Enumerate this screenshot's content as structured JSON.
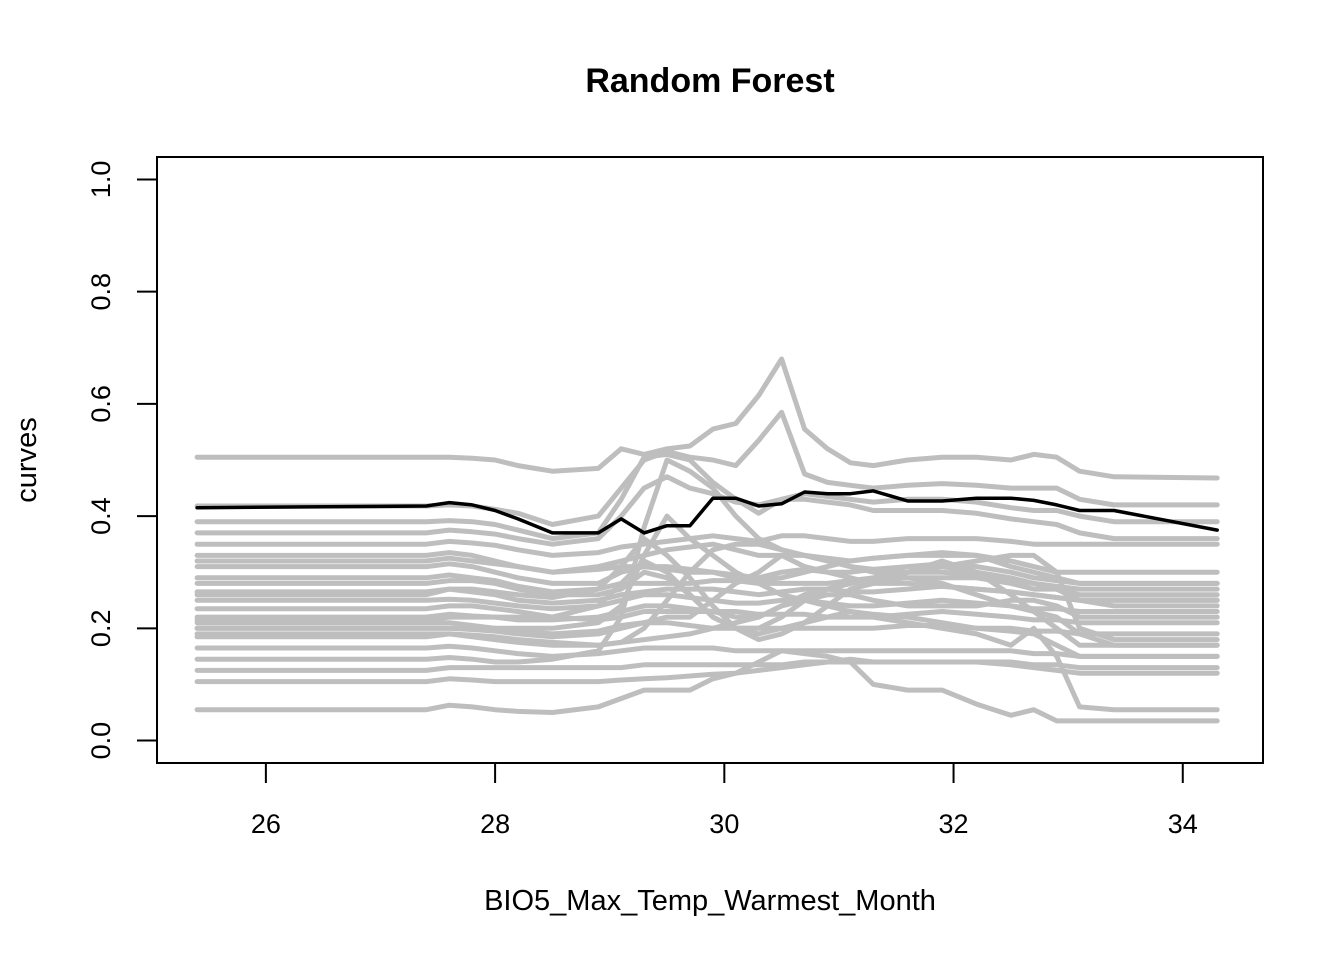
{
  "chart_data": {
    "type": "line",
    "title": "Random Forest",
    "xlabel": "BIO5_Max_Temp_Warmest_Month",
    "ylabel": "curves",
    "xlim": [
      25.05,
      34.7
    ],
    "ylim": [
      -0.04,
      1.04
    ],
    "xticks": [
      26,
      28,
      30,
      32,
      34
    ],
    "yticks": [
      0.0,
      0.2,
      0.4,
      0.6,
      0.8,
      1.0
    ],
    "xtick_labels": [
      "26",
      "28",
      "30",
      "32",
      "34"
    ],
    "ytick_labels": [
      "0.0",
      "0.2",
      "0.4",
      "0.6",
      "0.8",
      "1.0"
    ],
    "grid": false,
    "legend": "none",
    "colors": {
      "individual": "#bebebe",
      "mean": "#000000"
    },
    "x": [
      25.4,
      27.4,
      27.6,
      27.8,
      28.0,
      28.2,
      28.5,
      28.9,
      29.1,
      29.3,
      29.5,
      29.7,
      29.9,
      30.1,
      30.3,
      30.5,
      30.7,
      30.9,
      31.1,
      31.3,
      31.6,
      31.9,
      32.2,
      32.5,
      32.7,
      32.9,
      33.1,
      33.4,
      34.3
    ],
    "series": [
      {
        "values": [
          0.505,
          0.505,
          0.505,
          0.503,
          0.5,
          0.49,
          0.48,
          0.485,
          0.52,
          0.51,
          0.52,
          0.525,
          0.555,
          0.565,
          0.615,
          0.68,
          0.555,
          0.52,
          0.495,
          0.49,
          0.5,
          0.505,
          0.505,
          0.5,
          0.51,
          0.505,
          0.48,
          0.47,
          0.468
        ]
      },
      {
        "values": [
          0.418,
          0.418,
          0.42,
          0.418,
          0.412,
          0.405,
          0.385,
          0.4,
          0.45,
          0.5,
          0.515,
          0.505,
          0.5,
          0.49,
          0.535,
          0.585,
          0.475,
          0.46,
          0.455,
          0.45,
          0.455,
          0.458,
          0.455,
          0.45,
          0.45,
          0.45,
          0.43,
          0.42,
          0.42
        ]
      },
      {
        "values": [
          0.39,
          0.39,
          0.392,
          0.39,
          0.385,
          0.375,
          0.36,
          0.37,
          0.43,
          0.505,
          0.51,
          0.5,
          0.46,
          0.43,
          0.405,
          0.43,
          0.44,
          0.435,
          0.43,
          0.425,
          0.43,
          0.43,
          0.425,
          0.415,
          0.41,
          0.41,
          0.4,
          0.39,
          0.39
        ]
      },
      {
        "values": [
          0.37,
          0.37,
          0.375,
          0.372,
          0.368,
          0.36,
          0.35,
          0.36,
          0.4,
          0.45,
          0.47,
          0.45,
          0.44,
          0.425,
          0.42,
          0.43,
          0.43,
          0.425,
          0.42,
          0.41,
          0.41,
          0.41,
          0.405,
          0.395,
          0.39,
          0.385,
          0.37,
          0.36,
          0.36
        ]
      },
      {
        "values": [
          0.35,
          0.35,
          0.355,
          0.352,
          0.348,
          0.34,
          0.33,
          0.335,
          0.345,
          0.35,
          0.355,
          0.36,
          0.365,
          0.36,
          0.355,
          0.365,
          0.365,
          0.36,
          0.355,
          0.355,
          0.36,
          0.36,
          0.36,
          0.355,
          0.35,
          0.35,
          0.35,
          0.35,
          0.35
        ]
      },
      {
        "values": [
          0.33,
          0.33,
          0.335,
          0.33,
          0.32,
          0.31,
          0.3,
          0.31,
          0.32,
          0.33,
          0.34,
          0.345,
          0.35,
          0.34,
          0.33,
          0.33,
          0.33,
          0.325,
          0.32,
          0.325,
          0.33,
          0.33,
          0.33,
          0.32,
          0.31,
          0.3,
          0.3,
          0.3,
          0.3
        ]
      },
      {
        "values": [
          0.31,
          0.31,
          0.315,
          0.31,
          0.3,
          0.29,
          0.28,
          0.28,
          0.3,
          0.31,
          0.31,
          0.305,
          0.3,
          0.295,
          0.29,
          0.3,
          0.305,
          0.3,
          0.3,
          0.305,
          0.31,
          0.315,
          0.31,
          0.3,
          0.29,
          0.285,
          0.28,
          0.28,
          0.28
        ]
      },
      {
        "values": [
          0.29,
          0.29,
          0.295,
          0.29,
          0.285,
          0.275,
          0.265,
          0.27,
          0.28,
          0.28,
          0.28,
          0.28,
          0.285,
          0.285,
          0.28,
          0.28,
          0.28,
          0.28,
          0.285,
          0.29,
          0.3,
          0.3,
          0.295,
          0.285,
          0.28,
          0.275,
          0.27,
          0.27,
          0.27
        ]
      },
      {
        "values": [
          0.265,
          0.265,
          0.27,
          0.265,
          0.26,
          0.25,
          0.245,
          0.25,
          0.26,
          0.265,
          0.27,
          0.27,
          0.27,
          0.265,
          0.26,
          0.265,
          0.27,
          0.27,
          0.265,
          0.265,
          0.27,
          0.275,
          0.27,
          0.265,
          0.26,
          0.255,
          0.25,
          0.25,
          0.25
        ]
      },
      {
        "values": [
          0.25,
          0.25,
          0.252,
          0.25,
          0.245,
          0.24,
          0.235,
          0.24,
          0.25,
          0.26,
          0.26,
          0.255,
          0.25,
          0.245,
          0.245,
          0.25,
          0.25,
          0.245,
          0.24,
          0.24,
          0.245,
          0.25,
          0.245,
          0.24,
          0.235,
          0.235,
          0.23,
          0.23,
          0.23
        ]
      },
      {
        "values": [
          0.22,
          0.22,
          0.225,
          0.222,
          0.22,
          0.215,
          0.215,
          0.22,
          0.23,
          0.24,
          0.24,
          0.235,
          0.23,
          0.23,
          0.225,
          0.225,
          0.225,
          0.22,
          0.22,
          0.22,
          0.225,
          0.23,
          0.225,
          0.22,
          0.215,
          0.215,
          0.21,
          0.21,
          0.21
        ]
      },
      {
        "values": [
          0.21,
          0.21,
          0.21,
          0.205,
          0.2,
          0.195,
          0.19,
          0.195,
          0.205,
          0.21,
          0.21,
          0.205,
          0.2,
          0.2,
          0.2,
          0.2,
          0.2,
          0.2,
          0.2,
          0.2,
          0.205,
          0.205,
          0.2,
          0.2,
          0.195,
          0.195,
          0.19,
          0.19,
          0.19
        ]
      },
      {
        "values": [
          0.2,
          0.2,
          0.2,
          0.198,
          0.195,
          0.19,
          0.185,
          0.19,
          0.2,
          0.21,
          0.22,
          0.22,
          0.25,
          0.28,
          0.3,
          0.33,
          0.31,
          0.3,
          0.29,
          0.28,
          0.28,
          0.275,
          0.27,
          0.265,
          0.26,
          0.255,
          0.25,
          0.25,
          0.25
        ]
      },
      {
        "values": [
          0.19,
          0.19,
          0.19,
          0.188,
          0.185,
          0.18,
          0.175,
          0.17,
          0.175,
          0.2,
          0.25,
          0.3,
          0.34,
          0.35,
          0.35,
          0.34,
          0.33,
          0.32,
          0.31,
          0.3,
          0.29,
          0.28,
          0.26,
          0.24,
          0.23,
          0.22,
          0.19,
          0.17,
          0.17
        ]
      },
      {
        "values": [
          0.165,
          0.165,
          0.168,
          0.165,
          0.16,
          0.155,
          0.15,
          0.155,
          0.16,
          0.165,
          0.165,
          0.165,
          0.165,
          0.16,
          0.16,
          0.16,
          0.16,
          0.16,
          0.16,
          0.16,
          0.16,
          0.16,
          0.16,
          0.16,
          0.155,
          0.155,
          0.15,
          0.15,
          0.15
        ]
      },
      {
        "values": [
          0.145,
          0.145,
          0.148,
          0.145,
          0.14,
          0.14,
          0.145,
          0.16,
          0.22,
          0.38,
          0.5,
          0.48,
          0.45,
          0.4,
          0.36,
          0.34,
          0.33,
          0.32,
          0.31,
          0.305,
          0.3,
          0.31,
          0.32,
          0.33,
          0.33,
          0.3,
          0.2,
          0.18,
          0.18
        ]
      },
      {
        "values": [
          0.125,
          0.125,
          0.13,
          0.13,
          0.13,
          0.13,
          0.13,
          0.13,
          0.13,
          0.135,
          0.135,
          0.135,
          0.135,
          0.135,
          0.135,
          0.135,
          0.14,
          0.14,
          0.14,
          0.14,
          0.14,
          0.14,
          0.14,
          0.14,
          0.135,
          0.135,
          0.13,
          0.13,
          0.13
        ]
      },
      {
        "values": [
          0.105,
          0.105,
          0.11,
          0.108,
          0.105,
          0.105,
          0.105,
          0.105,
          0.108,
          0.11,
          0.112,
          0.115,
          0.118,
          0.12,
          0.125,
          0.13,
          0.135,
          0.14,
          0.145,
          0.14,
          0.14,
          0.14,
          0.14,
          0.135,
          0.13,
          0.125,
          0.12,
          0.12,
          0.12
        ]
      },
      {
        "values": [
          0.055,
          0.055,
          0.063,
          0.06,
          0.055,
          0.052,
          0.05,
          0.06,
          0.075,
          0.09,
          0.09,
          0.09,
          0.11,
          0.12,
          0.14,
          0.16,
          0.155,
          0.15,
          0.14,
          0.1,
          0.09,
          0.09,
          0.065,
          0.045,
          0.055,
          0.035,
          0.035,
          0.035,
          0.035
        ]
      },
      {
        "values": [
          0.2,
          0.2,
          0.2,
          0.2,
          0.2,
          0.2,
          0.2,
          0.21,
          0.24,
          0.33,
          0.4,
          0.36,
          0.33,
          0.3,
          0.28,
          0.26,
          0.25,
          0.24,
          0.23,
          0.22,
          0.21,
          0.2,
          0.19,
          0.17,
          0.2,
          0.15,
          0.06,
          0.055,
          0.055
        ]
      },
      {
        "values": [
          0.215,
          0.215,
          0.22,
          0.22,
          0.22,
          0.22,
          0.22,
          0.24,
          0.28,
          0.32,
          0.3,
          0.26,
          0.22,
          0.2,
          0.19,
          0.2,
          0.21,
          0.22,
          0.23,
          0.225,
          0.22,
          0.21,
          0.2,
          0.195,
          0.19,
          0.17,
          0.15,
          0.15,
          0.15
        ]
      },
      {
        "values": [
          0.26,
          0.26,
          0.27,
          0.27,
          0.265,
          0.26,
          0.255,
          0.27,
          0.31,
          0.36,
          0.33,
          0.29,
          0.24,
          0.2,
          0.18,
          0.19,
          0.21,
          0.24,
          0.27,
          0.28,
          0.3,
          0.32,
          0.3,
          0.26,
          0.23,
          0.2,
          0.17,
          0.17,
          0.17
        ]
      },
      {
        "values": [
          0.28,
          0.28,
          0.285,
          0.285,
          0.28,
          0.27,
          0.26,
          0.26,
          0.27,
          0.3,
          0.29,
          0.26,
          0.22,
          0.2,
          0.2,
          0.22,
          0.25,
          0.27,
          0.28,
          0.285,
          0.29,
          0.29,
          0.29,
          0.28,
          0.27,
          0.27,
          0.26,
          0.26,
          0.26
        ]
      },
      {
        "values": [
          0.235,
          0.235,
          0.24,
          0.24,
          0.235,
          0.23,
          0.22,
          0.215,
          0.22,
          0.23,
          0.23,
          0.23,
          0.23,
          0.22,
          0.22,
          0.24,
          0.25,
          0.26,
          0.26,
          0.25,
          0.24,
          0.24,
          0.24,
          0.25,
          0.25,
          0.24,
          0.22,
          0.22,
          0.22
        ]
      },
      {
        "values": [
          0.185,
          0.185,
          0.19,
          0.185,
          0.18,
          0.175,
          0.17,
          0.17,
          0.175,
          0.18,
          0.185,
          0.19,
          0.2,
          0.21,
          0.22,
          0.24,
          0.26,
          0.27,
          0.28,
          0.29,
          0.3,
          0.31,
          0.3,
          0.29,
          0.28,
          0.27,
          0.25,
          0.24,
          0.24
        ]
      },
      {
        "values": [
          0.32,
          0.32,
          0.325,
          0.32,
          0.315,
          0.31,
          0.3,
          0.305,
          0.31,
          0.31,
          0.305,
          0.3,
          0.3,
          0.29,
          0.285,
          0.29,
          0.3,
          0.31,
          0.32,
          0.325,
          0.33,
          0.335,
          0.33,
          0.31,
          0.3,
          0.29,
          0.28,
          0.28,
          0.28
        ]
      }
    ],
    "mean": {
      "values": [
        0.415,
        0.418,
        0.424,
        0.42,
        0.41,
        0.395,
        0.37,
        0.37,
        0.395,
        0.37,
        0.383,
        0.383,
        0.432,
        0.432,
        0.418,
        0.422,
        0.443,
        0.44,
        0.44,
        0.445,
        0.427,
        0.427,
        0.432,
        0.432,
        0.428,
        0.42,
        0.41,
        0.41,
        0.375
      ]
    }
  }
}
